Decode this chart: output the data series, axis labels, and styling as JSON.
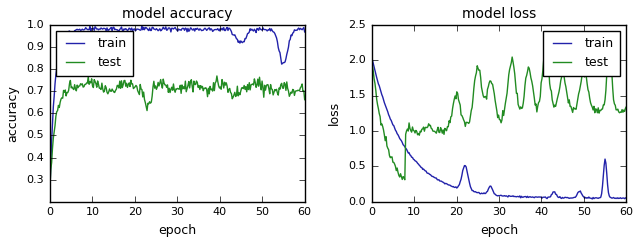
{
  "title_acc": "model accuracy",
  "title_loss": "model loss",
  "xlabel": "epoch",
  "ylabel_acc": "accuracy",
  "ylabel_loss": "loss",
  "xlim": [
    0,
    60
  ],
  "ylim_acc": [
    0.2,
    1.0
  ],
  "ylim_loss": [
    0.0,
    2.5
  ],
  "xticks_acc": [
    0,
    10,
    20,
    30,
    40,
    50,
    60
  ],
  "xticks_loss": [
    0,
    10,
    20,
    30,
    40,
    50,
    60
  ],
  "yticks_acc": [
    0.3,
    0.4,
    0.5,
    0.6,
    0.7,
    0.8,
    0.9,
    1.0
  ],
  "yticks_loss": [
    0.0,
    0.5,
    1.0,
    1.5,
    2.0,
    2.5
  ],
  "train_color": "#2222aa",
  "test_color": "#228B22",
  "legend_labels": [
    "train",
    "test"
  ],
  "bg_color": "#ffffff",
  "title_fontsize": 10,
  "label_fontsize": 9,
  "tick_fontsize": 8,
  "legend_fontsize": 9
}
